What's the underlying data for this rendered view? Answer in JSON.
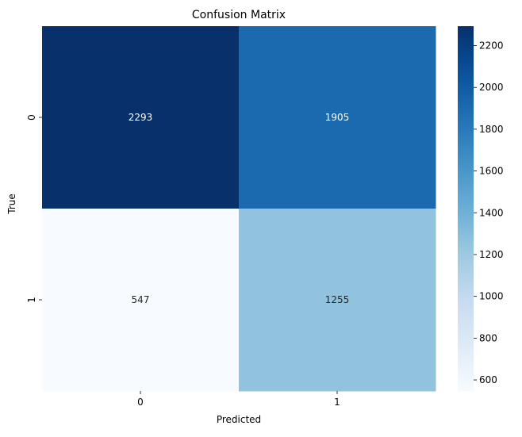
{
  "chart_data": {
    "type": "heatmap",
    "title": "Confusion Matrix",
    "xlabel": "Predicted",
    "ylabel": "True",
    "x_categories": [
      "0",
      "1"
    ],
    "y_categories": [
      "0",
      "1"
    ],
    "values": [
      [
        2293,
        1905
      ],
      [
        547,
        1255
      ]
    ],
    "colormap": "Blues",
    "colorbar": {
      "range": [
        547,
        2293
      ],
      "ticks": [
        600,
        800,
        1000,
        1200,
        1400,
        1600,
        1800,
        2000,
        2200
      ]
    },
    "colors": {
      "low": "#f7fbff",
      "high": "#08306b",
      "annotation_light": "#ffffff",
      "annotation_dark": "#262626"
    }
  }
}
